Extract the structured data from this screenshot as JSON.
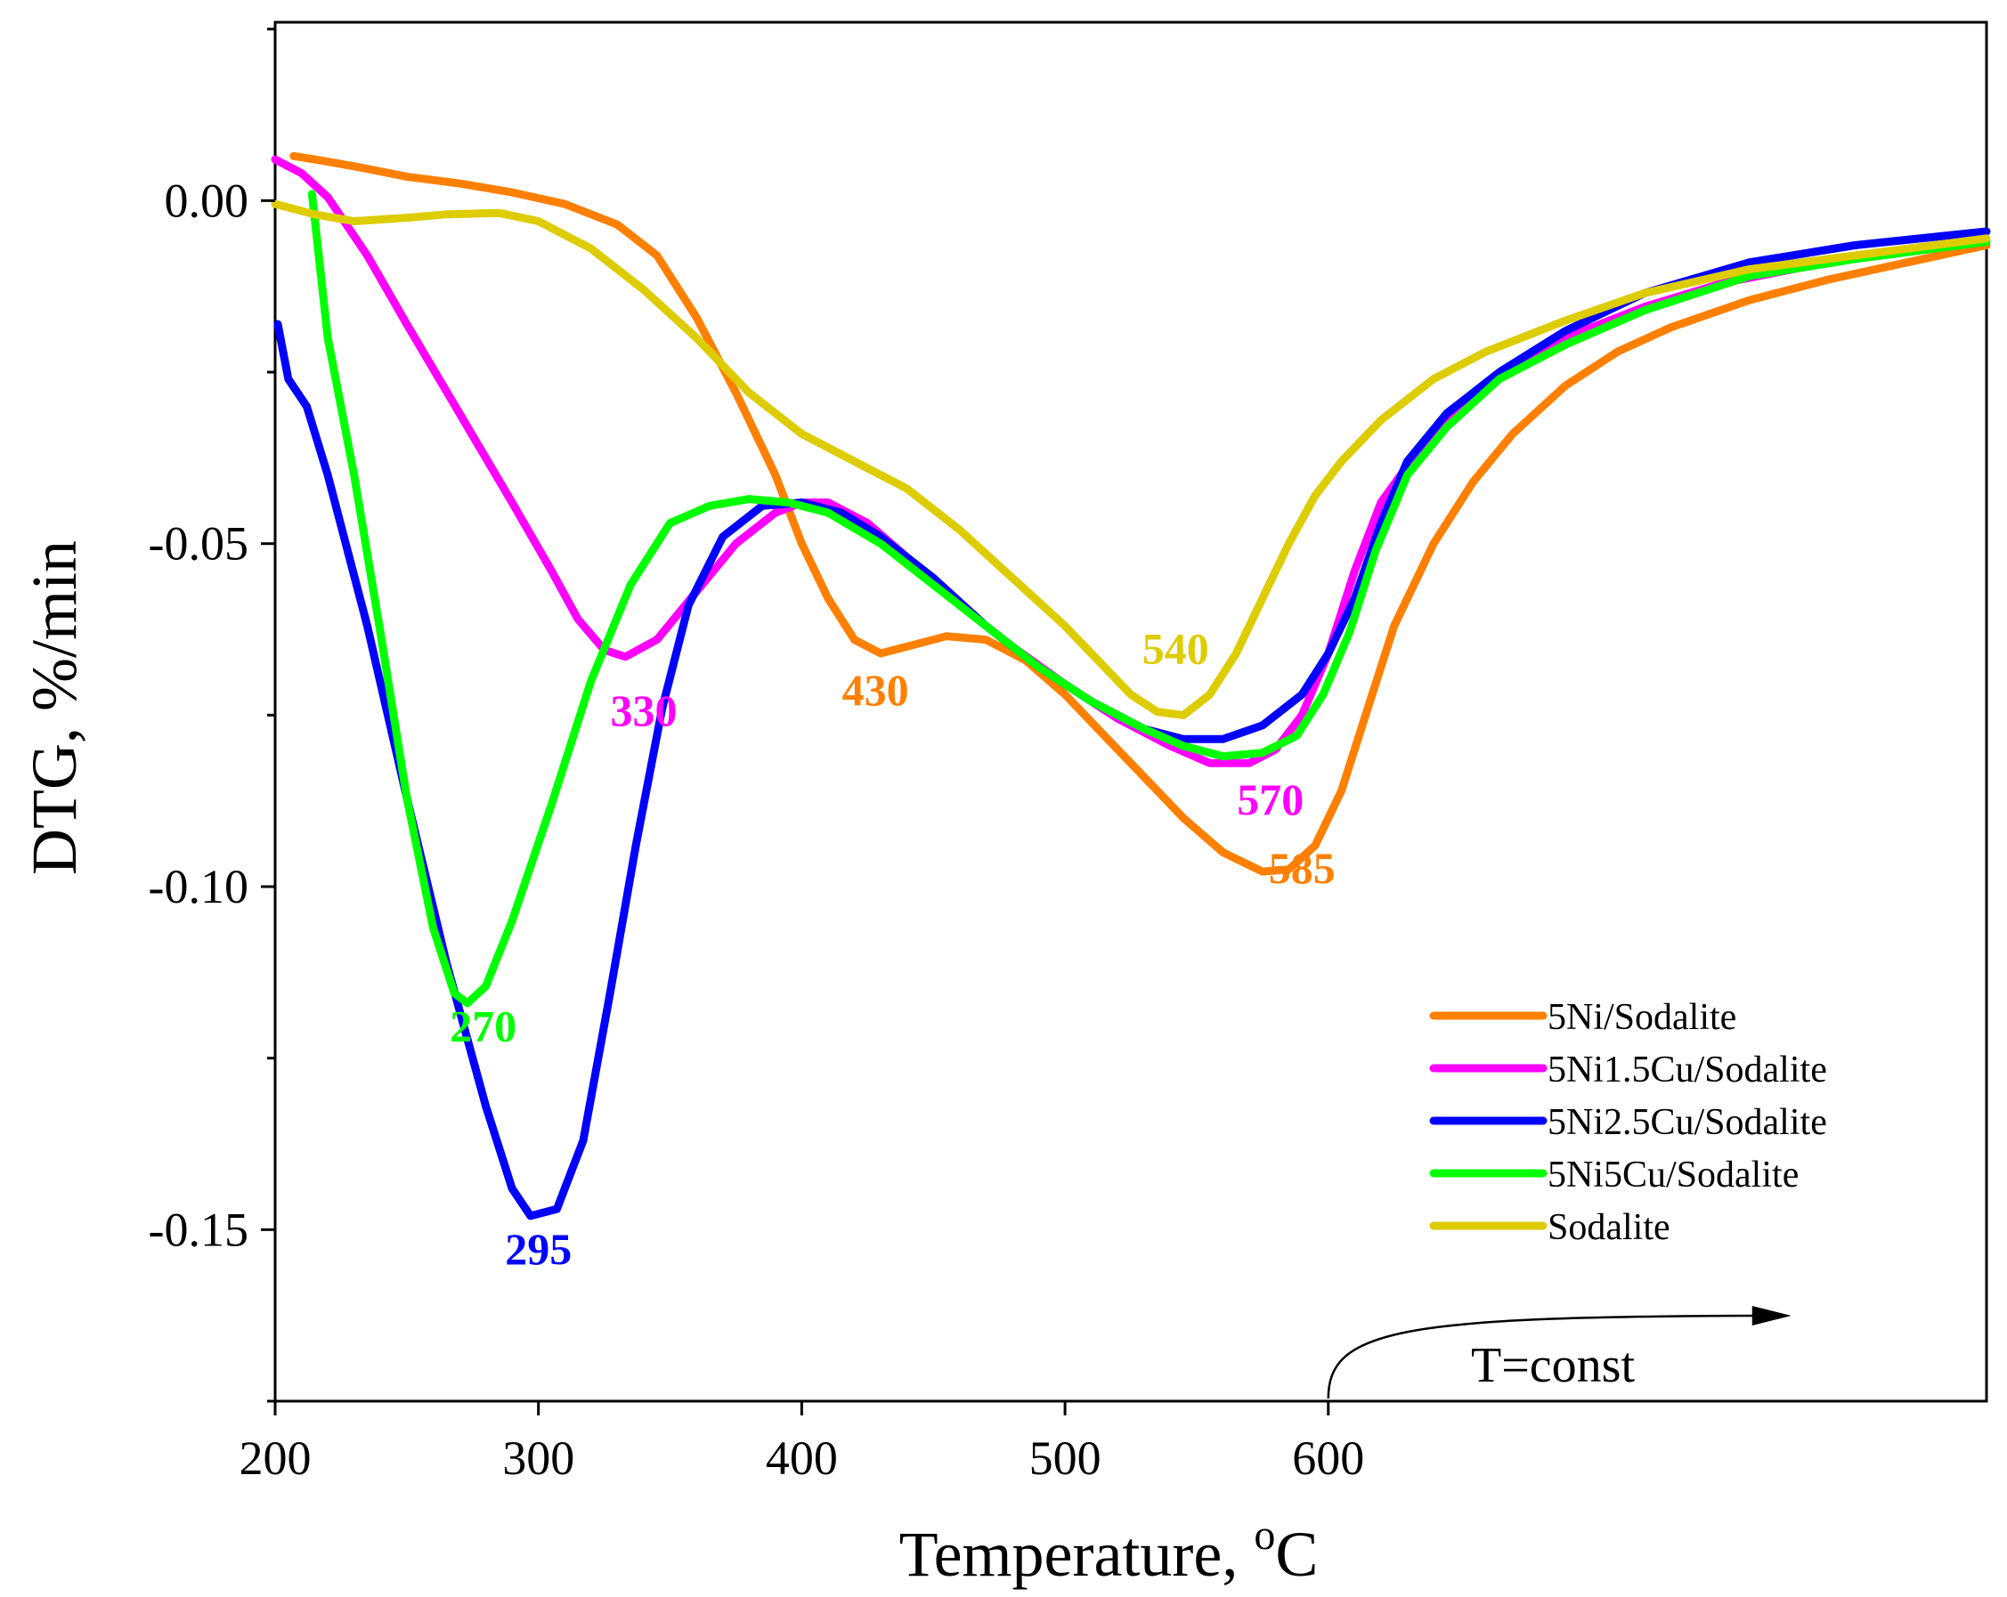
{
  "chart_data": {
    "type": "line",
    "xlabel": "Temperature, ",
    "xlabel_degree": "o",
    "xlabel_unit": "C",
    "ylabel": "DTG, %/min",
    "xlim": [
      200,
      850
    ],
    "ylim": [
      -0.175,
      0.026
    ],
    "x_ticks": [
      200,
      300,
      400,
      500,
      600
    ],
    "x_tick_labels": [
      "200",
      "300",
      "400",
      "500",
      "600"
    ],
    "y_ticks": [
      0.0,
      -0.05,
      -0.1,
      -0.15
    ],
    "y_tick_labels": [
      "0.00",
      "-0.05",
      "-0.10",
      "-0.15"
    ],
    "y_minor_ticks": [
      0.025,
      -0.025,
      -0.075,
      -0.125,
      -0.175
    ],
    "legend_position": "lower-right",
    "annotation_text": "T=const",
    "annotation_arrow_from_x": 600,
    "series": [
      {
        "name": "5Ni/Sodalite",
        "color": "#FF8000",
        "points": [
          [
            207,
            0.0065
          ],
          [
            215,
            0.006
          ],
          [
            230,
            0.005
          ],
          [
            250,
            0.0035
          ],
          [
            270,
            0.0025
          ],
          [
            290,
            0.0012
          ],
          [
            310,
            -0.0005
          ],
          [
            330,
            -0.0035
          ],
          [
            345,
            -0.008
          ],
          [
            360,
            -0.017
          ],
          [
            375,
            -0.028
          ],
          [
            390,
            -0.04
          ],
          [
            400,
            -0.05
          ],
          [
            410,
            -0.058
          ],
          [
            420,
            -0.064
          ],
          [
            430,
            -0.066
          ],
          [
            440,
            -0.065
          ],
          [
            455,
            -0.0635
          ],
          [
            470,
            -0.064
          ],
          [
            485,
            -0.067
          ],
          [
            500,
            -0.072
          ],
          [
            515,
            -0.078
          ],
          [
            530,
            -0.084
          ],
          [
            545,
            -0.09
          ],
          [
            560,
            -0.095
          ],
          [
            575,
            -0.0978
          ],
          [
            585,
            -0.0975
          ],
          [
            595,
            -0.094
          ],
          [
            605,
            -0.086
          ],
          [
            615,
            -0.074
          ],
          [
            625,
            -0.062
          ],
          [
            640,
            -0.05
          ],
          [
            655,
            -0.041
          ],
          [
            670,
            -0.034
          ],
          [
            690,
            -0.027
          ],
          [
            710,
            -0.022
          ],
          [
            730,
            -0.0185
          ],
          [
            760,
            -0.0145
          ],
          [
            790,
            -0.0115
          ],
          [
            820,
            -0.009
          ],
          [
            850,
            -0.0065
          ]
        ]
      },
      {
        "name": "5Ni1.5Cu/Sodalite",
        "color": "#FF00FF",
        "points": [
          [
            200,
            0.006
          ],
          [
            210,
            0.004
          ],
          [
            220,
            0.0005
          ],
          [
            235,
            -0.008
          ],
          [
            250,
            -0.018
          ],
          [
            270,
            -0.031
          ],
          [
            290,
            -0.044
          ],
          [
            305,
            -0.054
          ],
          [
            315,
            -0.061
          ],
          [
            325,
            -0.0655
          ],
          [
            333,
            -0.0665
          ],
          [
            345,
            -0.064
          ],
          [
            360,
            -0.057
          ],
          [
            375,
            -0.05
          ],
          [
            390,
            -0.0455
          ],
          [
            400,
            -0.044
          ],
          [
            410,
            -0.044
          ],
          [
            425,
            -0.047
          ],
          [
            440,
            -0.052
          ],
          [
            460,
            -0.059
          ],
          [
            480,
            -0.065
          ],
          [
            500,
            -0.0705
          ],
          [
            520,
            -0.0755
          ],
          [
            540,
            -0.0795
          ],
          [
            555,
            -0.082
          ],
          [
            570,
            -0.082
          ],
          [
            580,
            -0.08
          ],
          [
            590,
            -0.075
          ],
          [
            600,
            -0.066
          ],
          [
            610,
            -0.054
          ],
          [
            620,
            -0.044
          ],
          [
            635,
            -0.036
          ],
          [
            650,
            -0.03
          ],
          [
            670,
            -0.0245
          ],
          [
            690,
            -0.02
          ],
          [
            720,
            -0.0155
          ],
          [
            750,
            -0.012
          ],
          [
            790,
            -0.009
          ],
          [
            820,
            -0.0075
          ],
          [
            850,
            -0.006
          ]
        ]
      },
      {
        "name": "5Ni2.5Cu/Sodalite",
        "color": "#0000FF",
        "points": [
          [
            201,
            -0.018
          ],
          [
            205,
            -0.026
          ],
          [
            212,
            -0.03
          ],
          [
            220,
            -0.04
          ],
          [
            235,
            -0.062
          ],
          [
            250,
            -0.087
          ],
          [
            265,
            -0.111
          ],
          [
            280,
            -0.132
          ],
          [
            290,
            -0.144
          ],
          [
            297,
            -0.148
          ],
          [
            307,
            -0.147
          ],
          [
            317,
            -0.137
          ],
          [
            327,
            -0.116
          ],
          [
            337,
            -0.094
          ],
          [
            347,
            -0.074
          ],
          [
            357,
            -0.059
          ],
          [
            370,
            -0.049
          ],
          [
            385,
            -0.0445
          ],
          [
            400,
            -0.044
          ],
          [
            415,
            -0.0455
          ],
          [
            430,
            -0.049
          ],
          [
            450,
            -0.055
          ],
          [
            470,
            -0.062
          ],
          [
            490,
            -0.068
          ],
          [
            510,
            -0.073
          ],
          [
            530,
            -0.077
          ],
          [
            545,
            -0.0785
          ],
          [
            560,
            -0.0785
          ],
          [
            575,
            -0.0765
          ],
          [
            590,
            -0.072
          ],
          [
            600,
            -0.066
          ],
          [
            610,
            -0.058
          ],
          [
            620,
            -0.047
          ],
          [
            630,
            -0.038
          ],
          [
            645,
            -0.031
          ],
          [
            665,
            -0.025
          ],
          [
            690,
            -0.019
          ],
          [
            720,
            -0.0135
          ],
          [
            760,
            -0.009
          ],
          [
            800,
            -0.0065
          ],
          [
            850,
            -0.0045
          ]
        ]
      },
      {
        "name": "5Ni5Cu/Sodalite",
        "color": "#00FF00",
        "points": [
          [
            214,
            0.001
          ],
          [
            220,
            -0.02
          ],
          [
            230,
            -0.04
          ],
          [
            240,
            -0.063
          ],
          [
            250,
            -0.087
          ],
          [
            260,
            -0.106
          ],
          [
            268,
            -0.1155
          ],
          [
            273,
            -0.117
          ],
          [
            280,
            -0.1145
          ],
          [
            290,
            -0.105
          ],
          [
            305,
            -0.088
          ],
          [
            320,
            -0.07
          ],
          [
            335,
            -0.056
          ],
          [
            350,
            -0.047
          ],
          [
            365,
            -0.0445
          ],
          [
            380,
            -0.0435
          ],
          [
            395,
            -0.044
          ],
          [
            410,
            -0.0455
          ],
          [
            430,
            -0.05
          ],
          [
            450,
            -0.056
          ],
          [
            470,
            -0.062
          ],
          [
            490,
            -0.068
          ],
          [
            510,
            -0.073
          ],
          [
            530,
            -0.077
          ],
          [
            545,
            -0.0795
          ],
          [
            560,
            -0.081
          ],
          [
            575,
            -0.0805
          ],
          [
            588,
            -0.078
          ],
          [
            598,
            -0.072
          ],
          [
            608,
            -0.063
          ],
          [
            618,
            -0.051
          ],
          [
            630,
            -0.04
          ],
          [
            645,
            -0.033
          ],
          [
            665,
            -0.026
          ],
          [
            690,
            -0.021
          ],
          [
            720,
            -0.016
          ],
          [
            760,
            -0.011
          ],
          [
            800,
            -0.0085
          ],
          [
            850,
            -0.006
          ]
        ]
      },
      {
        "name": "Sodalite",
        "color": "#DDCC00",
        "points": [
          [
            200,
            -0.0005
          ],
          [
            215,
            -0.002
          ],
          [
            230,
            -0.003
          ],
          [
            250,
            -0.0025
          ],
          [
            265,
            -0.002
          ],
          [
            285,
            -0.0018
          ],
          [
            300,
            -0.003
          ],
          [
            320,
            -0.007
          ],
          [
            340,
            -0.013
          ],
          [
            360,
            -0.02
          ],
          [
            380,
            -0.028
          ],
          [
            400,
            -0.034
          ],
          [
            420,
            -0.038
          ],
          [
            440,
            -0.042
          ],
          [
            460,
            -0.048
          ],
          [
            480,
            -0.055
          ],
          [
            500,
            -0.062
          ],
          [
            515,
            -0.068
          ],
          [
            525,
            -0.072
          ],
          [
            535,
            -0.0745
          ],
          [
            545,
            -0.075
          ],
          [
            555,
            -0.072
          ],
          [
            565,
            -0.066
          ],
          [
            575,
            -0.058
          ],
          [
            585,
            -0.05
          ],
          [
            595,
            -0.043
          ],
          [
            605,
            -0.038
          ],
          [
            620,
            -0.032
          ],
          [
            640,
            -0.026
          ],
          [
            660,
            -0.022
          ],
          [
            690,
            -0.0175
          ],
          [
            720,
            -0.0135
          ],
          [
            760,
            -0.01
          ],
          [
            800,
            -0.008
          ],
          [
            850,
            -0.0055
          ]
        ]
      }
    ],
    "peak_labels": [
      {
        "text": "295",
        "color": "#0000FF",
        "x": 300,
        "y": -0.155
      },
      {
        "text": "270",
        "color": "#00FF00",
        "x": 279,
        "y": -0.1225
      },
      {
        "text": "330",
        "color": "#FF00FF",
        "x": 340,
        "y": -0.0765
      },
      {
        "text": "430",
        "color": "#FF8000",
        "x": 428,
        "y": -0.0735
      },
      {
        "text": "540",
        "color": "#DDCC00",
        "x": 542,
        "y": -0.0675
      },
      {
        "text": "570",
        "color": "#FF00FF",
        "x": 578,
        "y": -0.0895
      },
      {
        "text": "585",
        "color": "#FF8000",
        "x": 590,
        "y": -0.0995
      }
    ]
  }
}
